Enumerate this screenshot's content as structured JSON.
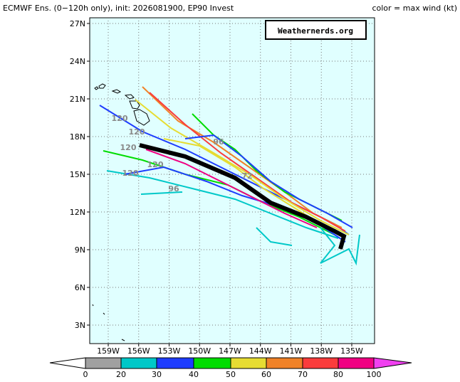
{
  "header": {
    "title": "ECMWF Ens. (0−120h only), init: 2026081900, EP90 Invest",
    "legend_note": "color = max wind (kt)"
  },
  "watermark": "Weathernerds.org",
  "lat_labels": [
    "27N",
    "24N",
    "21N",
    "18N",
    "15N",
    "12N",
    "9N",
    "6N",
    "3N"
  ],
  "lon_labels": [
    "159W",
    "156W",
    "153W",
    "150W",
    "147W",
    "144W",
    "141W",
    "138W",
    "135W"
  ],
  "colorbar": {
    "labels": [
      "0",
      "20",
      "30",
      "40",
      "50",
      "60",
      "70",
      "80",
      "100"
    ],
    "colors": [
      "#ffffff",
      "#a0a0a0",
      "#00c8c8",
      "#1e3cff",
      "#00dc00",
      "#e6dc32",
      "#f08228",
      "#fa3c3c",
      "#f00082",
      "#f040f0"
    ]
  },
  "track_labels": [
    "120",
    "120",
    "120",
    "120",
    "120",
    "96",
    "96",
    "72"
  ]
}
